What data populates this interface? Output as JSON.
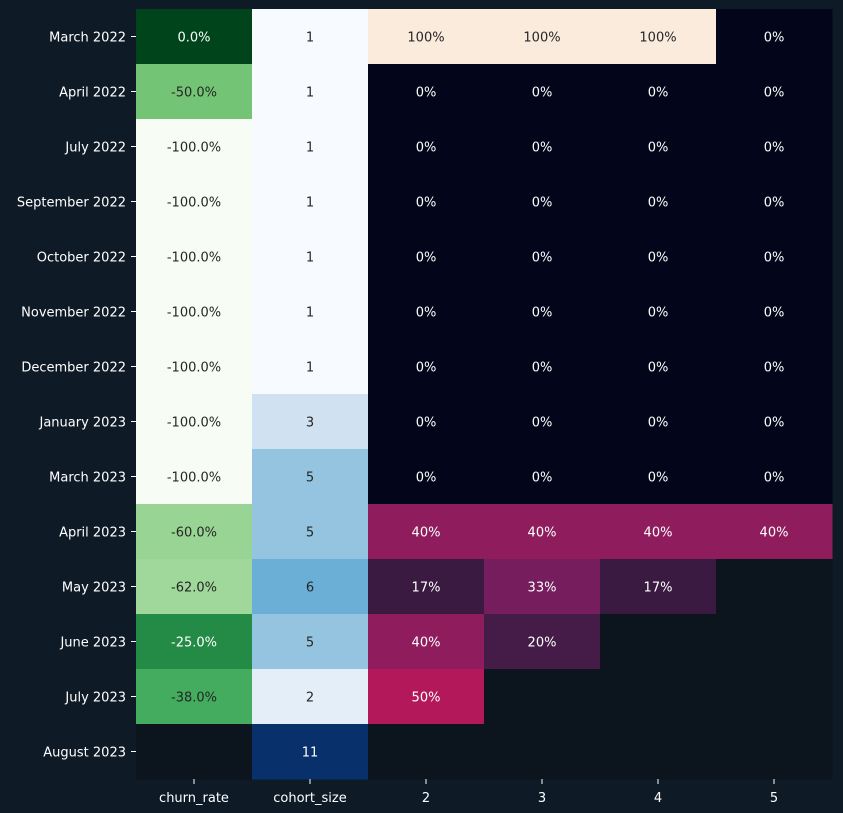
{
  "chart_data": {
    "type": "heatmap",
    "rows": [
      "March 2022",
      "April 2022",
      "July 2022",
      "September 2022",
      "October 2022",
      "November 2022",
      "December 2022",
      "January 2023",
      "March 2023",
      "April 2023",
      "May 2023",
      "June 2023",
      "July 2023",
      "August 2023"
    ],
    "columns": [
      "churn_rate",
      "cohort_size",
      "2",
      "3",
      "4",
      "5"
    ],
    "churn_rate": {
      "values": [
        0.0,
        -50.0,
        -100.0,
        -100.0,
        -100.0,
        -100.0,
        -100.0,
        -100.0,
        -100.0,
        -60.0,
        -62.0,
        -25.0,
        -38.0,
        null
      ],
      "labels": [
        "0.0%",
        "-50.0%",
        "-100.0%",
        "-100.0%",
        "-100.0%",
        "-100.0%",
        "-100.0%",
        "-100.0%",
        "-100.0%",
        "-60.0%",
        "-62.0%",
        "-25.0%",
        "-38.0%",
        ""
      ]
    },
    "cohort_size": {
      "values": [
        1,
        1,
        1,
        1,
        1,
        1,
        1,
        3,
        5,
        5,
        6,
        5,
        2,
        11
      ],
      "labels": [
        "1",
        "1",
        "1",
        "1",
        "1",
        "1",
        "1",
        "3",
        "5",
        "5",
        "6",
        "5",
        "2",
        "11"
      ]
    },
    "retention": {
      "values": [
        [
          100,
          100,
          100,
          0
        ],
        [
          0,
          0,
          0,
          0
        ],
        [
          0,
          0,
          0,
          0
        ],
        [
          0,
          0,
          0,
          0
        ],
        [
          0,
          0,
          0,
          0
        ],
        [
          0,
          0,
          0,
          0
        ],
        [
          0,
          0,
          0,
          0
        ],
        [
          0,
          0,
          0,
          0
        ],
        [
          0,
          0,
          0,
          0
        ],
        [
          40,
          40,
          40,
          40
        ],
        [
          17,
          33,
          17,
          null
        ],
        [
          40,
          20,
          null,
          null
        ],
        [
          50,
          null,
          null,
          null
        ],
        [
          null,
          null,
          null,
          null
        ]
      ],
      "labels": [
        [
          "100%",
          "100%",
          "100%",
          "0%"
        ],
        [
          "0%",
          "0%",
          "0%",
          "0%"
        ],
        [
          "0%",
          "0%",
          "0%",
          "0%"
        ],
        [
          "0%",
          "0%",
          "0%",
          "0%"
        ],
        [
          "0%",
          "0%",
          "0%",
          "0%"
        ],
        [
          "0%",
          "0%",
          "0%",
          "0%"
        ],
        [
          "0%",
          "0%",
          "0%",
          "0%"
        ],
        [
          "0%",
          "0%",
          "0%",
          "0%"
        ],
        [
          "0%",
          "0%",
          "0%",
          "0%"
        ],
        [
          "40%",
          "40%",
          "40%",
          "40%"
        ],
        [
          "17%",
          "33%",
          "17%",
          ""
        ],
        [
          "40%",
          "20%",
          "",
          ""
        ],
        [
          "50%",
          "",
          "",
          ""
        ],
        [
          "",
          "",
          "",
          ""
        ]
      ]
    },
    "colormaps": {
      "churn_rate": "Greens",
      "cohort_size": "Blues",
      "retention": "rocket"
    },
    "colors": {
      "background": "#0e1a26",
      "missing_cell": "#0c141d",
      "text_light": "#ffffff",
      "text_dark": "#262626"
    }
  }
}
